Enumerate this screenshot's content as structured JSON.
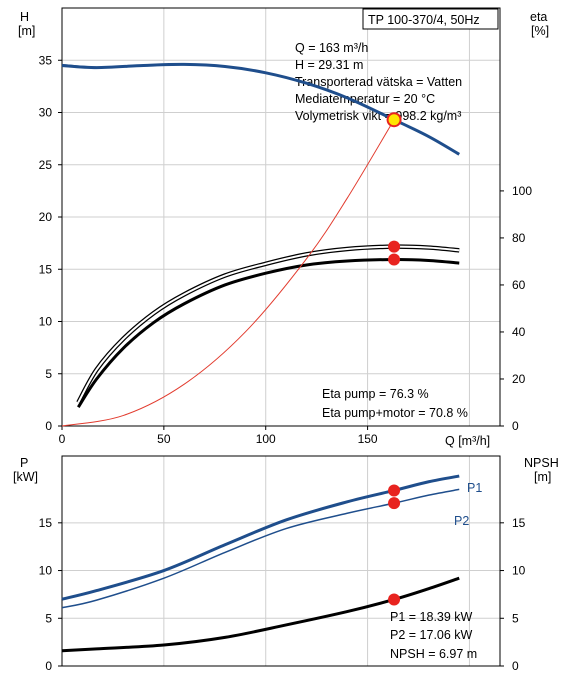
{
  "title": "TP 100-370/4, 50Hz",
  "colors": {
    "blue": "#1f4e8c",
    "red": "#e8231f",
    "yellow": "#ffe600",
    "thin_red": "#e23b2e",
    "grid": "#cfcfcf"
  },
  "top_axes": {
    "left_label_1": "H",
    "left_label_2": "[m]",
    "right_label_1": "eta",
    "right_label_2": "[%]",
    "x_label": "Q [m³/h]"
  },
  "bottom_axes": {
    "left_label_1": "P",
    "left_label_2": "[kW]",
    "right_label_1": "NPSH",
    "right_label_2": "[m]"
  },
  "info": {
    "q": "Q = 163 m³/h",
    "h": "H = 29.31 m",
    "fluid": "Transporterad vätska = Vatten",
    "temp": "Mediatemperatur = 20 °C",
    "density": "Volymetrisk vikt = 998.2 kg/m³"
  },
  "eta_info": {
    "pump": "Eta pump = 76.3 %",
    "motor": "Eta pump+motor = 70.8 %"
  },
  "power_info": {
    "p1": "P1 = 18.39 kW",
    "p2": "P2 = 17.06 kW",
    "npsh": "NPSH = 6.97 m"
  },
  "curve_labels": {
    "p1": "P1",
    "p2": "P2"
  },
  "chart_data": [
    {
      "type": "line",
      "title": "TP 100-370/4, 50Hz",
      "xlabel": "Q [m³/h]",
      "ylabel": "H [m]",
      "y2label": "eta [%]",
      "xlim": [
        0,
        215
      ],
      "ylim": [
        0,
        40
      ],
      "y2lim": [
        0,
        177.8
      ],
      "xticks": [
        0,
        50,
        100,
        150
      ],
      "yticks": [
        0,
        5,
        10,
        15,
        20,
        25,
        30,
        35
      ],
      "y2ticks": [
        0,
        20,
        40,
        60,
        80,
        100
      ],
      "grid": true,
      "series": [
        {
          "name": "H",
          "axis": "left",
          "color": "#1f4e8c",
          "width": 3,
          "x": [
            0,
            17,
            40,
            60,
            80,
            100,
            120,
            140,
            163,
            180,
            195
          ],
          "y": [
            34.5,
            34.3,
            34.5,
            34.6,
            34.4,
            33.8,
            32.8,
            31.4,
            29.31,
            27.7,
            26.0
          ]
        },
        {
          "name": "H-ext",
          "axis": "left",
          "color": "#1f4e8c",
          "width": 1,
          "x": [
            0,
            17
          ],
          "y": [
            34.6,
            34.3
          ]
        },
        {
          "name": "Eta pump",
          "axis": "right",
          "color": "#000000",
          "width": 1.5,
          "double": true,
          "x": [
            8,
            17,
            30,
            45,
            60,
            80,
            100,
            120,
            140,
            163,
            180,
            195
          ],
          "y": [
            10,
            24,
            37,
            48,
            56,
            64,
            69,
            73,
            75.3,
            76.3,
            75.9,
            74.7
          ]
        },
        {
          "name": "Eta pump+motor",
          "axis": "right",
          "color": "#000000",
          "width": 3,
          "x": [
            8,
            17,
            30,
            45,
            60,
            80,
            100,
            120,
            140,
            163,
            180,
            195
          ],
          "y": [
            8,
            20,
            33,
            44,
            52,
            60,
            65,
            68.5,
            70.2,
            70.8,
            70.4,
            69.3
          ]
        },
        {
          "name": "System",
          "axis": "left",
          "color": "#e23b2e",
          "width": 1,
          "x": [
            0,
            30,
            60,
            90,
            120,
            140,
            163
          ],
          "y": [
            0,
            1.0,
            4.0,
            9.0,
            16.0,
            21.8,
            29.31
          ]
        }
      ],
      "points": [
        {
          "name": "Duty point",
          "axis": "left",
          "x": 163,
          "y": 29.31,
          "marker": "yellow"
        },
        {
          "name": "Eta pump",
          "axis": "right",
          "x": 163,
          "y": 76.3,
          "marker": "red"
        },
        {
          "name": "Eta pump+motor",
          "axis": "right",
          "x": 163,
          "y": 70.8,
          "marker": "red"
        }
      ]
    },
    {
      "type": "line",
      "ylabel": "P [kW]",
      "y2label": "NPSH [m]",
      "xlim": [
        0,
        215
      ],
      "ylim": [
        0,
        22
      ],
      "y2lim": [
        0,
        22
      ],
      "yticks": [
        0,
        5,
        10,
        15
      ],
      "y2ticks": [
        0,
        5,
        10,
        15
      ],
      "grid": true,
      "series": [
        {
          "name": "P1",
          "axis": "left",
          "color": "#1f4e8c",
          "width": 3,
          "x": [
            0,
            17,
            50,
            80,
            110,
            140,
            163,
            180,
            195
          ],
          "y": [
            7.0,
            7.9,
            10.0,
            12.7,
            15.3,
            17.2,
            18.39,
            19.3,
            19.9
          ]
        },
        {
          "name": "P2",
          "axis": "left",
          "color": "#1f4e8c",
          "width": 1.5,
          "x": [
            0,
            17,
            50,
            80,
            110,
            140,
            163,
            180,
            195
          ],
          "y": [
            6.1,
            6.9,
            9.2,
            11.9,
            14.4,
            16.0,
            17.06,
            17.9,
            18.5
          ]
        },
        {
          "name": "NPSH",
          "axis": "right",
          "color": "#000000",
          "width": 3,
          "x": [
            0,
            17,
            50,
            80,
            110,
            140,
            163,
            180,
            195
          ],
          "y": [
            1.6,
            1.8,
            2.2,
            3.0,
            4.3,
            5.7,
            6.97,
            8.1,
            9.2
          ]
        }
      ],
      "points": [
        {
          "name": "P1",
          "axis": "left",
          "x": 163,
          "y": 18.39,
          "marker": "red"
        },
        {
          "name": "P2",
          "axis": "left",
          "x": 163,
          "y": 17.06,
          "marker": "red"
        },
        {
          "name": "NPSH",
          "axis": "right",
          "x": 163,
          "y": 6.97,
          "marker": "red"
        }
      ]
    }
  ]
}
